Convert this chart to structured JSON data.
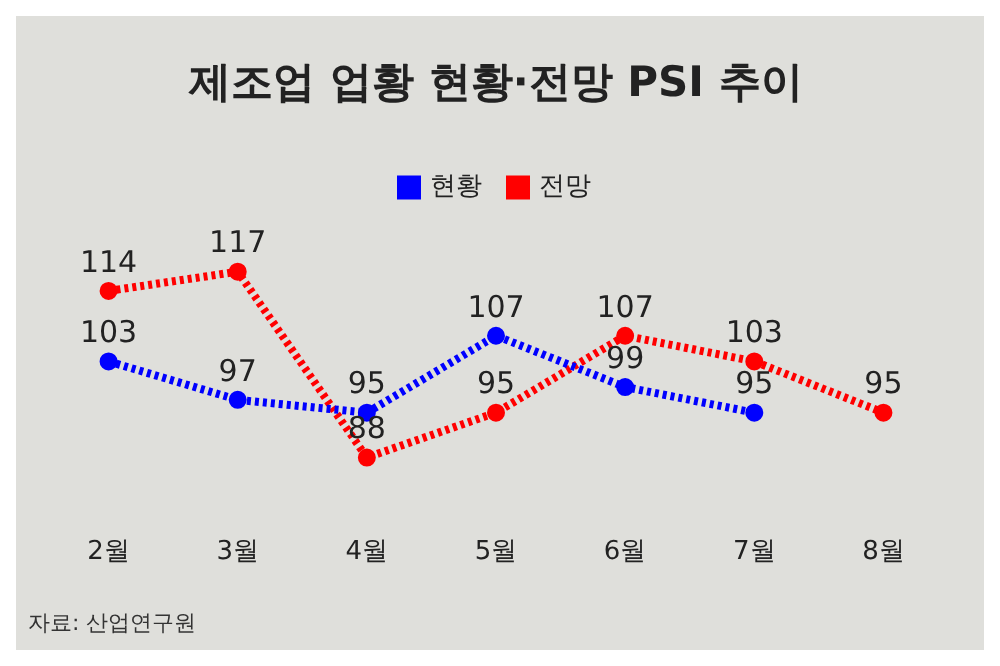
{
  "chart_data": {
    "type": "line",
    "title": "제조업 업황 현황·전망 PSI 추이",
    "categories": [
      "2월",
      "3월",
      "4월",
      "5월",
      "6월",
      "7월",
      "8월"
    ],
    "series": [
      {
        "name": "현황",
        "color": "#0000ff",
        "values": [
          103,
          97,
          95,
          107,
          99,
          95,
          null
        ]
      },
      {
        "name": "전망",
        "color": "#ff0000",
        "values": [
          114,
          117,
          88,
          95,
          107,
          103,
          95
        ]
      }
    ],
    "data_labels": true,
    "legend": "top",
    "marker": "circle",
    "line_style": "dotted",
    "grid": false,
    "annotations": [
      "자료: 산업연구원"
    ]
  }
}
